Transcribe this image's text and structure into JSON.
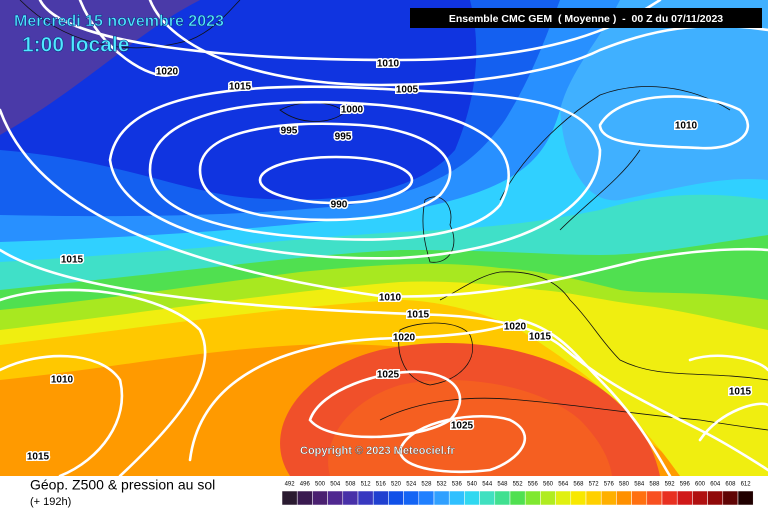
{
  "header": {
    "date": "Mercredi 15 novembre 2023",
    "time": "1:00 locale",
    "model": "Ensemble CMC GEM  ( Moyenne )  -  00 Z du 07/11/2023"
  },
  "isobar_labels": [
    "1020",
    "1015",
    "1010",
    "1005",
    "1000",
    "995",
    "995",
    "990",
    "1010",
    "1015",
    "1010",
    "1015",
    "1020",
    "1015",
    "1020",
    "1025",
    "1010",
    "1025",
    "1015",
    "1015"
  ],
  "copyright": "Copyright © 2023 Meteociel.fr",
  "legend": {
    "title": "Géop. Z500 & pression au sol",
    "subtitle": "(+ 192h)",
    "scale": [
      492,
      496,
      500,
      504,
      508,
      512,
      516,
      520,
      524,
      528,
      532,
      536,
      540,
      544,
      548,
      552,
      556,
      560,
      564,
      568,
      572,
      576,
      580,
      584,
      588,
      592,
      596,
      600,
      604,
      608,
      612
    ]
  }
}
